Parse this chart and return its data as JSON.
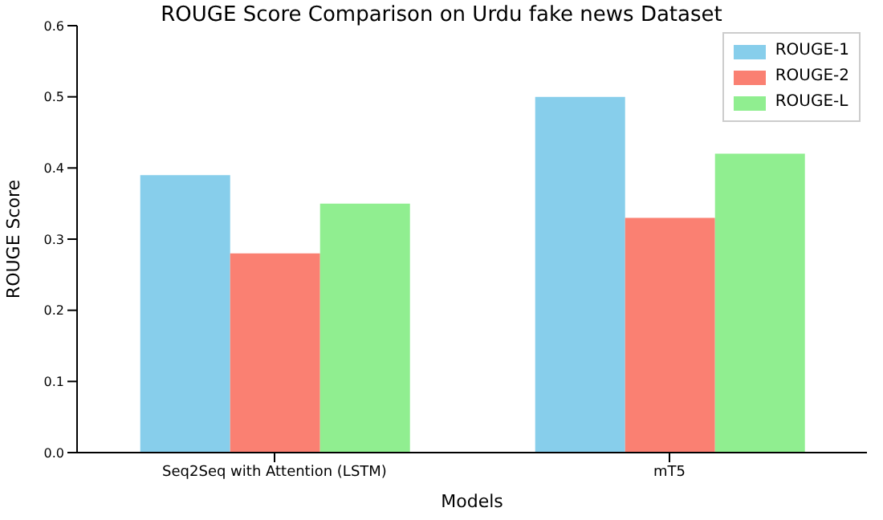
{
  "chart_data": {
    "type": "bar",
    "title": "ROUGE Score Comparison on Urdu fake news Dataset",
    "xlabel": "Models",
    "ylabel": "ROUGE Score",
    "categories": [
      "Seq2Seq with Attention (LSTM)",
      "mT5"
    ],
    "series": [
      {
        "name": "ROUGE-1",
        "color": "#87ceeb",
        "values": [
          0.39,
          0.5
        ]
      },
      {
        "name": "ROUGE-2",
        "color": "#fa8072",
        "values": [
          0.28,
          0.33
        ]
      },
      {
        "name": "ROUGE-L",
        "color": "#90ee90",
        "values": [
          0.35,
          0.42
        ]
      }
    ],
    "ylim": [
      0,
      0.6
    ],
    "yticks": [
      {
        "value": 0,
        "label": "0.0"
      },
      0.1,
      0.2,
      0.3,
      0.4,
      0.5,
      0.6
    ],
    "grid": false,
    "legend": "top right"
  }
}
